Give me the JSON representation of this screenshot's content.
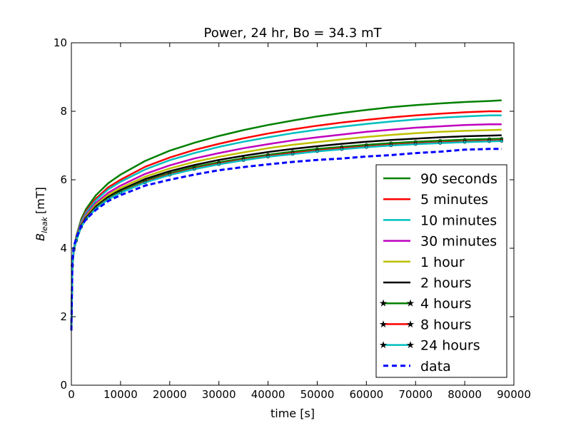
{
  "chart_data": {
    "type": "line",
    "title": "Power, 24 hr, Bo = 34.3 mT",
    "xlabel": "time [s]",
    "ylabel": {
      "symbol": "B",
      "subscript": "leak",
      "unit": "[mT]"
    },
    "xlim": [
      0,
      90000
    ],
    "ylim": [
      0,
      10
    ],
    "x_ticks": [
      "0",
      "10000",
      "20000",
      "30000",
      "40000",
      "50000",
      "60000",
      "70000",
      "80000",
      "90000"
    ],
    "y_ticks": [
      "0",
      "2",
      "4",
      "6",
      "8",
      "10"
    ],
    "grid": false,
    "legend_position": "bottom-right",
    "x": [
      0,
      200,
      500,
      1000,
      2000,
      3000,
      5000,
      7500,
      10000,
      15000,
      20000,
      25000,
      30000,
      35000,
      40000,
      45000,
      50000,
      55000,
      60000,
      65000,
      70000,
      75000,
      80000,
      85000,
      87500
    ],
    "series": [
      {
        "name": "90 seconds",
        "color": "#008000",
        "style": "solid",
        "y": [
          1.6,
          3.5,
          3.95,
          4.35,
          4.85,
          5.15,
          5.55,
          5.9,
          6.15,
          6.55,
          6.85,
          7.08,
          7.28,
          7.45,
          7.6,
          7.73,
          7.85,
          7.95,
          8.04,
          8.12,
          8.18,
          8.23,
          8.27,
          8.3,
          8.32
        ]
      },
      {
        "name": "5 minutes",
        "color": "#ff0000",
        "style": "solid",
        "y": [
          1.6,
          3.5,
          3.95,
          4.32,
          4.8,
          5.08,
          5.45,
          5.78,
          6.0,
          6.38,
          6.65,
          6.87,
          7.05,
          7.21,
          7.35,
          7.47,
          7.58,
          7.67,
          7.75,
          7.82,
          7.88,
          7.93,
          7.97,
          8.0,
          8.0
        ]
      },
      {
        "name": "10 minutes",
        "color": "#00bfbf",
        "style": "solid",
        "y": [
          1.6,
          3.5,
          3.95,
          4.3,
          4.77,
          5.04,
          5.4,
          5.72,
          5.94,
          6.3,
          6.57,
          6.78,
          6.96,
          7.11,
          7.24,
          7.36,
          7.46,
          7.55,
          7.63,
          7.7,
          7.76,
          7.81,
          7.85,
          7.88,
          7.88
        ]
      },
      {
        "name": "30 minutes",
        "color": "#bf00bf",
        "style": "solid",
        "y": [
          1.6,
          3.5,
          3.95,
          4.28,
          4.72,
          4.98,
          5.32,
          5.62,
          5.83,
          6.17,
          6.42,
          6.62,
          6.78,
          6.92,
          7.04,
          7.15,
          7.24,
          7.32,
          7.4,
          7.46,
          7.52,
          7.56,
          7.6,
          7.62,
          7.62
        ]
      },
      {
        "name": "1 hour",
        "color": "#bfbf00",
        "style": "solid",
        "y": [
          1.6,
          3.5,
          3.95,
          4.26,
          4.69,
          4.94,
          5.27,
          5.56,
          5.76,
          6.09,
          6.33,
          6.52,
          6.67,
          6.8,
          6.92,
          7.02,
          7.1,
          7.18,
          7.25,
          7.31,
          7.36,
          7.4,
          7.43,
          7.45,
          7.46
        ]
      },
      {
        "name": "2 hours",
        "color": "#000000",
        "style": "solid",
        "y": [
          1.6,
          3.5,
          3.95,
          4.24,
          4.66,
          4.9,
          5.22,
          5.5,
          5.7,
          6.02,
          6.25,
          6.43,
          6.58,
          6.7,
          6.81,
          6.9,
          6.98,
          7.05,
          7.11,
          7.16,
          7.2,
          7.24,
          7.27,
          7.29,
          7.3
        ]
      },
      {
        "name": "4 hours",
        "color": "#008000",
        "style": "solid",
        "marker": "star",
        "y": [
          1.6,
          3.5,
          3.95,
          4.23,
          4.64,
          4.87,
          5.19,
          5.46,
          5.66,
          5.97,
          6.19,
          6.37,
          6.51,
          6.63,
          6.73,
          6.82,
          6.9,
          6.96,
          7.02,
          7.07,
          7.11,
          7.14,
          7.17,
          7.19,
          7.2
        ]
      },
      {
        "name": "8 hours",
        "color": "#ff0000",
        "style": "solid",
        "marker": "star",
        "y": [
          1.6,
          3.5,
          3.95,
          4.22,
          4.63,
          4.86,
          5.17,
          5.44,
          5.63,
          5.94,
          6.16,
          6.33,
          6.47,
          6.59,
          6.69,
          6.78,
          6.85,
          6.92,
          6.97,
          7.02,
          7.06,
          7.09,
          7.12,
          7.14,
          7.15
        ]
      },
      {
        "name": "24 hours",
        "color": "#00bfbf",
        "style": "solid",
        "marker": "star",
        "y": [
          1.6,
          3.5,
          3.95,
          4.22,
          4.62,
          4.85,
          5.16,
          5.43,
          5.62,
          5.92,
          6.14,
          6.31,
          6.45,
          6.57,
          6.67,
          6.75,
          6.83,
          6.89,
          6.95,
          7.0,
          7.04,
          7.07,
          7.1,
          7.12,
          7.13
        ]
      },
      {
        "name": "data",
        "color": "#0000ff",
        "style": "dashed",
        "y": [
          1.6,
          3.6,
          4.05,
          4.3,
          4.65,
          4.85,
          5.12,
          5.38,
          5.55,
          5.83,
          6.0,
          6.15,
          6.28,
          6.37,
          6.45,
          6.52,
          6.58,
          6.62,
          6.68,
          6.72,
          6.78,
          6.82,
          6.88,
          6.9,
          6.9
        ]
      }
    ]
  }
}
